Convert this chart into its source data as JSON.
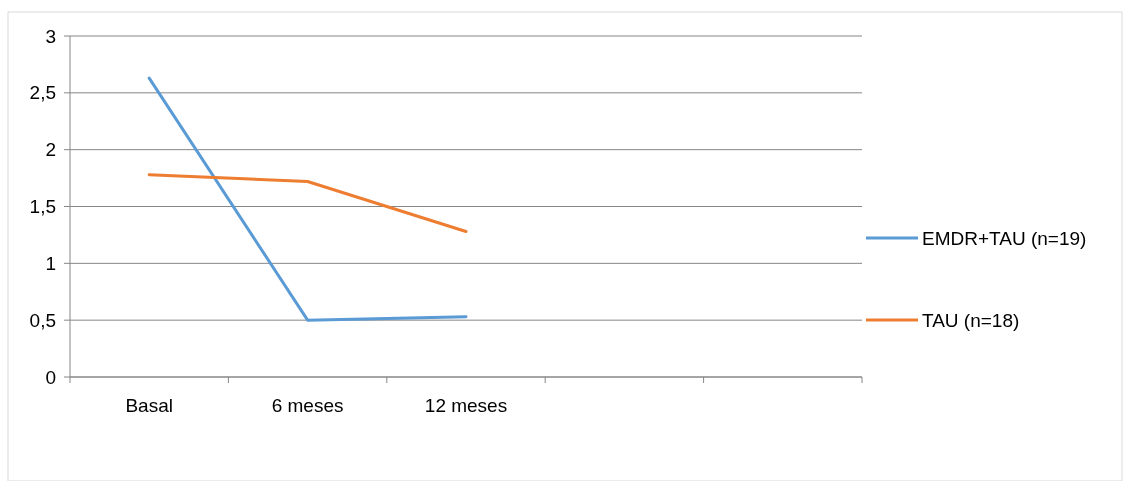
{
  "chart_data": {
    "type": "line",
    "categories": [
      "Basal",
      "6 meses",
      "12 meses",
      null,
      null
    ],
    "series": [
      {
        "name": "EMDR+TAU (n=19)",
        "color": "#5b9bd5",
        "values": [
          2.63,
          0.5,
          0.53,
          null,
          null
        ]
      },
      {
        "name": "TAU (n=18)",
        "color": "#ed7d31",
        "values": [
          1.78,
          1.72,
          1.28,
          null,
          null
        ]
      }
    ],
    "ylim": [
      0,
      3
    ],
    "yticks": [
      0,
      {
        "value": 0.5,
        "label": "0,5"
      },
      1,
      {
        "value": 1.5,
        "label": "1,5"
      },
      2,
      {
        "value": 2.5,
        "label": "2,5"
      },
      3
    ],
    "grid": "y",
    "legend": "right",
    "marker": "none",
    "line_style": "solid"
  }
}
